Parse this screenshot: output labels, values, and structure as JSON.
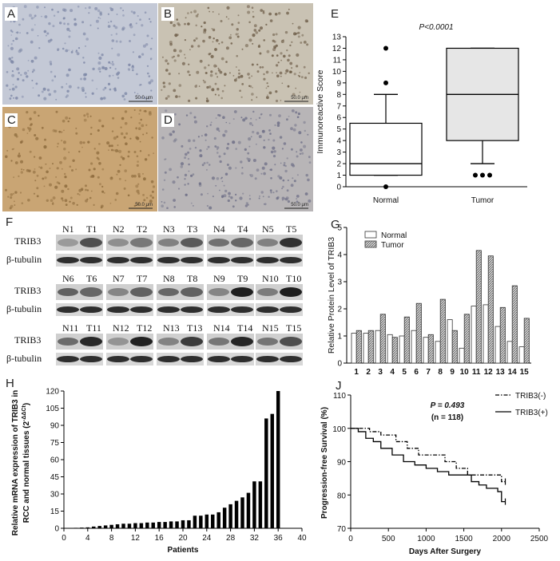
{
  "panel_labels": {
    "A": "A",
    "B": "B",
    "C": "C",
    "D": "D",
    "E": "E",
    "F": "F",
    "G": "G",
    "H": "H",
    "J": "J"
  },
  "ihc": {
    "scale_bar": "50.0 μm",
    "tiles": [
      {
        "label": "A",
        "bg": "#c4c9d6",
        "speck": "#7c86a5"
      },
      {
        "label": "B",
        "bg": "#c9c2b3",
        "speck": "#6b5a45"
      },
      {
        "label": "C",
        "bg": "#c9a574",
        "speck": "#8c6a3c"
      },
      {
        "label": "D",
        "bg": "#b8b5b7",
        "speck": "#6d6e86"
      }
    ]
  },
  "western_blot": {
    "rows": [
      {
        "pairs": [
          [
            "N1",
            "T1"
          ],
          [
            "N2",
            "T2"
          ],
          [
            "N3",
            "T3"
          ],
          [
            "N4",
            "T4"
          ],
          [
            "N5",
            "T5"
          ]
        ]
      },
      {
        "pairs": [
          [
            "N6",
            "T6"
          ],
          [
            "N7",
            "T7"
          ],
          [
            "N8",
            "T8"
          ],
          [
            "N9",
            "T9"
          ],
          [
            "N10",
            "T10"
          ]
        ]
      },
      {
        "pairs": [
          [
            "N11",
            "T11"
          ],
          [
            "N12",
            "T12"
          ],
          [
            "N13",
            "T13"
          ],
          [
            "N14",
            "T14"
          ],
          [
            "N15",
            "T15"
          ]
        ]
      }
    ],
    "protein_label": "TRIB3",
    "loading_label": "β-tubulin"
  },
  "chart_data": [
    {
      "panel": "E",
      "type": "box",
      "annotation": "P<0.0001",
      "ylabel": "Immunoreactive Score",
      "ylim": [
        0,
        13
      ],
      "yticks": [
        0,
        1,
        2,
        3,
        4,
        5,
        6,
        7,
        8,
        9,
        10,
        11,
        12,
        13
      ],
      "categories": [
        "Normal",
        "Tumor"
      ],
      "boxes": [
        {
          "name": "Normal",
          "whisker_low": 1,
          "q1": 1,
          "median": 2,
          "q3": 5.5,
          "whisker_high": 8,
          "outliers": [
            0,
            9,
            12
          ]
        },
        {
          "name": "Tumor",
          "whisker_low": 2,
          "q1": 4,
          "median": 8,
          "q3": 12,
          "whisker_high": 12,
          "outliers": [
            1,
            1,
            1
          ]
        }
      ]
    },
    {
      "panel": "G",
      "type": "bar",
      "ylabel": "Relative Protein Level of TRIB3",
      "ylim": [
        0,
        5
      ],
      "yticks": [
        0,
        1,
        2,
        3,
        4,
        5
      ],
      "categories": [
        "1",
        "2",
        "3",
        "4",
        "5",
        "6",
        "7",
        "8",
        "9",
        "10",
        "11",
        "12",
        "13",
        "14",
        "15"
      ],
      "series": [
        {
          "name": "Normal",
          "values": [
            1.1,
            1.1,
            1.2,
            1.05,
            1.0,
            1.2,
            0.95,
            0.8,
            1.6,
            0.55,
            2.1,
            2.15,
            1.35,
            0.8,
            0.6
          ]
        },
        {
          "name": "Tumor",
          "values": [
            1.2,
            1.2,
            1.8,
            0.95,
            1.7,
            2.2,
            1.05,
            2.35,
            1.2,
            1.8,
            4.15,
            3.95,
            2.05,
            2.85,
            1.65
          ]
        }
      ],
      "legend_position": "top-left"
    },
    {
      "panel": "H",
      "type": "bar",
      "xlabel": "Patients",
      "ylabel": "Relative mRNA expression of TRIB3 in RCC and normal tissues (2^-ΔΔCt)",
      "ylabel_line1": "Relative mRNA expression of TRIB3 in",
      "ylabel_line2": "RCC and normal tissues (2",
      "ylabel_sup": "-ΔΔCt",
      "ylabel_close": ")",
      "xlim": [
        0,
        40
      ],
      "xticks": [
        0,
        4,
        8,
        12,
        16,
        20,
        24,
        28,
        32,
        36,
        40
      ],
      "ylim": [
        0,
        120
      ],
      "yticks": [
        0,
        15,
        30,
        45,
        60,
        75,
        90,
        105,
        120
      ],
      "x": [
        1,
        2,
        3,
        4,
        5,
        6,
        7,
        8,
        9,
        10,
        11,
        12,
        13,
        14,
        15,
        16,
        17,
        18,
        19,
        20,
        21,
        22,
        23,
        24,
        25,
        26,
        27,
        28,
        29,
        30,
        31,
        32,
        33,
        34,
        35,
        36
      ],
      "values": [
        0.2,
        0.4,
        0.6,
        0.8,
        1.5,
        2,
        2.5,
        3,
        3.5,
        4,
        4,
        4.5,
        4.5,
        5,
        5,
        5.5,
        5.5,
        6,
        6,
        7,
        7,
        11,
        11,
        12,
        12,
        14,
        18,
        21,
        24,
        27,
        31,
        41,
        41,
        96,
        100,
        120
      ]
    },
    {
      "panel": "J",
      "type": "line",
      "xlabel": "Days After Surgery",
      "ylabel": "Progression-free Survival (%)",
      "xlim": [
        0,
        2500
      ],
      "xticks": [
        0,
        500,
        1000,
        1500,
        2000,
        2500
      ],
      "ylim": [
        70,
        110
      ],
      "yticks": [
        70,
        80,
        90,
        100,
        110
      ],
      "annotation_p": "P = 0.493",
      "annotation_n": "(n = 118)",
      "legend_position": "top-right",
      "series": [
        {
          "name": "TRIB3(-)",
          "style": "dash-dot",
          "x": [
            0,
            150,
            250,
            400,
            600,
            750,
            900,
            1050,
            1250,
            1400,
            1550,
            1950,
            2000,
            2050
          ],
          "y": [
            100,
            100,
            99,
            98,
            96,
            94,
            92,
            92,
            90,
            88,
            86,
            86,
            84,
            84
          ]
        },
        {
          "name": "TRIB3(+)",
          "style": "solid",
          "x": [
            0,
            100,
            200,
            300,
            400,
            550,
            700,
            850,
            1000,
            1150,
            1300,
            1450,
            1600,
            1700,
            1800,
            1950,
            2000,
            2050
          ],
          "y": [
            100,
            99,
            97,
            96,
            94,
            92,
            90,
            89,
            88,
            87,
            86,
            86,
            84,
            83,
            82,
            81,
            78,
            78
          ]
        }
      ]
    }
  ]
}
